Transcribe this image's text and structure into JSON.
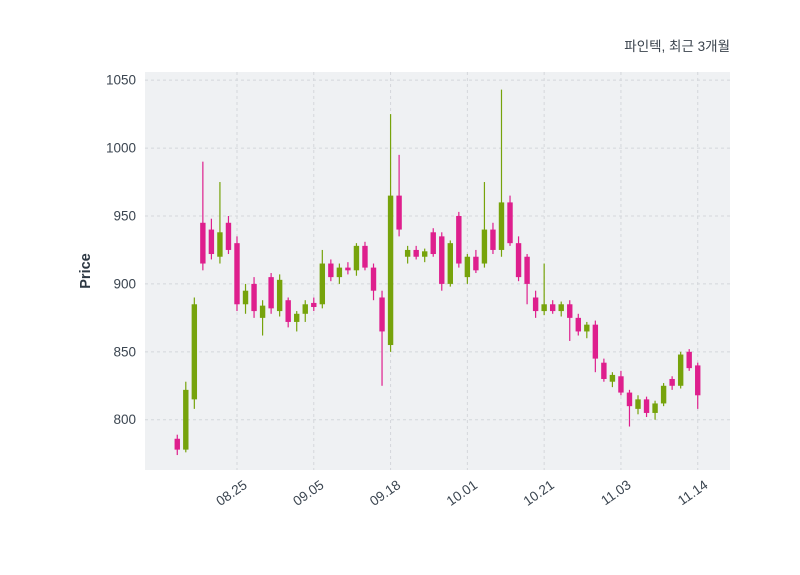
{
  "chart_data": {
    "type": "candlestick",
    "title": "파인텍, 최근 3개월",
    "ylabel": "Price",
    "ylim": [
      763,
      1056
    ],
    "y_ticks": [
      800,
      850,
      900,
      950,
      1000,
      1050
    ],
    "x_tick_labels": [
      "08.25",
      "09.05",
      "09.18",
      "10.01",
      "10.21",
      "11.03",
      "11.14"
    ],
    "x_tick_indices": [
      7,
      16,
      25,
      34,
      43,
      52,
      61
    ],
    "up_color": "#76a30b",
    "down_color": "#de1f8d",
    "plot_background": "#eff1f3",
    "grid_color": "#d4d7db",
    "grid_dashed": true,
    "legend_position": "none",
    "candles": [
      [
        786,
        789,
        774,
        778
      ],
      [
        778,
        828,
        776,
        822
      ],
      [
        815,
        890,
        808,
        885
      ],
      [
        945,
        990,
        910,
        915
      ],
      [
        940,
        948,
        918,
        922
      ],
      [
        920,
        975,
        915,
        938
      ],
      [
        945,
        950,
        922,
        925
      ],
      [
        930,
        935,
        880,
        885
      ],
      [
        885,
        900,
        878,
        895
      ],
      [
        900,
        905,
        875,
        880
      ],
      [
        875,
        888,
        862,
        884
      ],
      [
        905,
        908,
        878,
        882
      ],
      [
        880,
        907,
        876,
        903
      ],
      [
        888,
        890,
        868,
        872
      ],
      [
        872,
        880,
        865,
        878
      ],
      [
        878,
        888,
        872,
        885
      ],
      [
        886,
        890,
        880,
        883
      ],
      [
        885,
        925,
        882,
        915
      ],
      [
        915,
        918,
        902,
        905
      ],
      [
        905,
        915,
        900,
        912
      ],
      [
        912,
        916,
        907,
        910
      ],
      [
        910,
        930,
        906,
        928
      ],
      [
        928,
        931,
        910,
        912
      ],
      [
        912,
        915,
        888,
        895
      ],
      [
        890,
        895,
        825,
        865
      ],
      [
        855,
        1025,
        850,
        965
      ],
      [
        965,
        995,
        935,
        940
      ],
      [
        920,
        928,
        915,
        925
      ],
      [
        925,
        928,
        918,
        920
      ],
      [
        920,
        926,
        916,
        924
      ],
      [
        938,
        941,
        920,
        922
      ],
      [
        935,
        938,
        895,
        900
      ],
      [
        900,
        932,
        898,
        930
      ],
      [
        950,
        953,
        912,
        915
      ],
      [
        905,
        922,
        900,
        920
      ],
      [
        920,
        925,
        908,
        910
      ],
      [
        915,
        975,
        912,
        940
      ],
      [
        940,
        945,
        922,
        925
      ],
      [
        925,
        1043,
        920,
        960
      ],
      [
        960,
        965,
        928,
        930
      ],
      [
        930,
        935,
        902,
        905
      ],
      [
        920,
        922,
        885,
        900
      ],
      [
        890,
        895,
        875,
        880
      ],
      [
        880,
        915,
        877,
        885
      ],
      [
        885,
        888,
        878,
        880
      ],
      [
        880,
        887,
        876,
        885
      ],
      [
        885,
        888,
        858,
        875
      ],
      [
        875,
        878,
        862,
        865
      ],
      [
        865,
        872,
        860,
        870
      ],
      [
        870,
        873,
        835,
        845
      ],
      [
        842,
        845,
        828,
        830
      ],
      [
        828,
        835,
        824,
        833
      ],
      [
        832,
        836,
        818,
        820
      ],
      [
        820,
        822,
        795,
        810
      ],
      [
        808,
        818,
        804,
        815
      ],
      [
        815,
        817,
        802,
        805
      ],
      [
        805,
        814,
        800,
        812
      ],
      [
        812,
        827,
        810,
        825
      ],
      [
        830,
        832,
        822,
        825
      ],
      [
        825,
        850,
        823,
        848
      ],
      [
        850,
        852,
        836,
        838
      ],
      [
        840,
        842,
        808,
        818
      ]
    ]
  }
}
